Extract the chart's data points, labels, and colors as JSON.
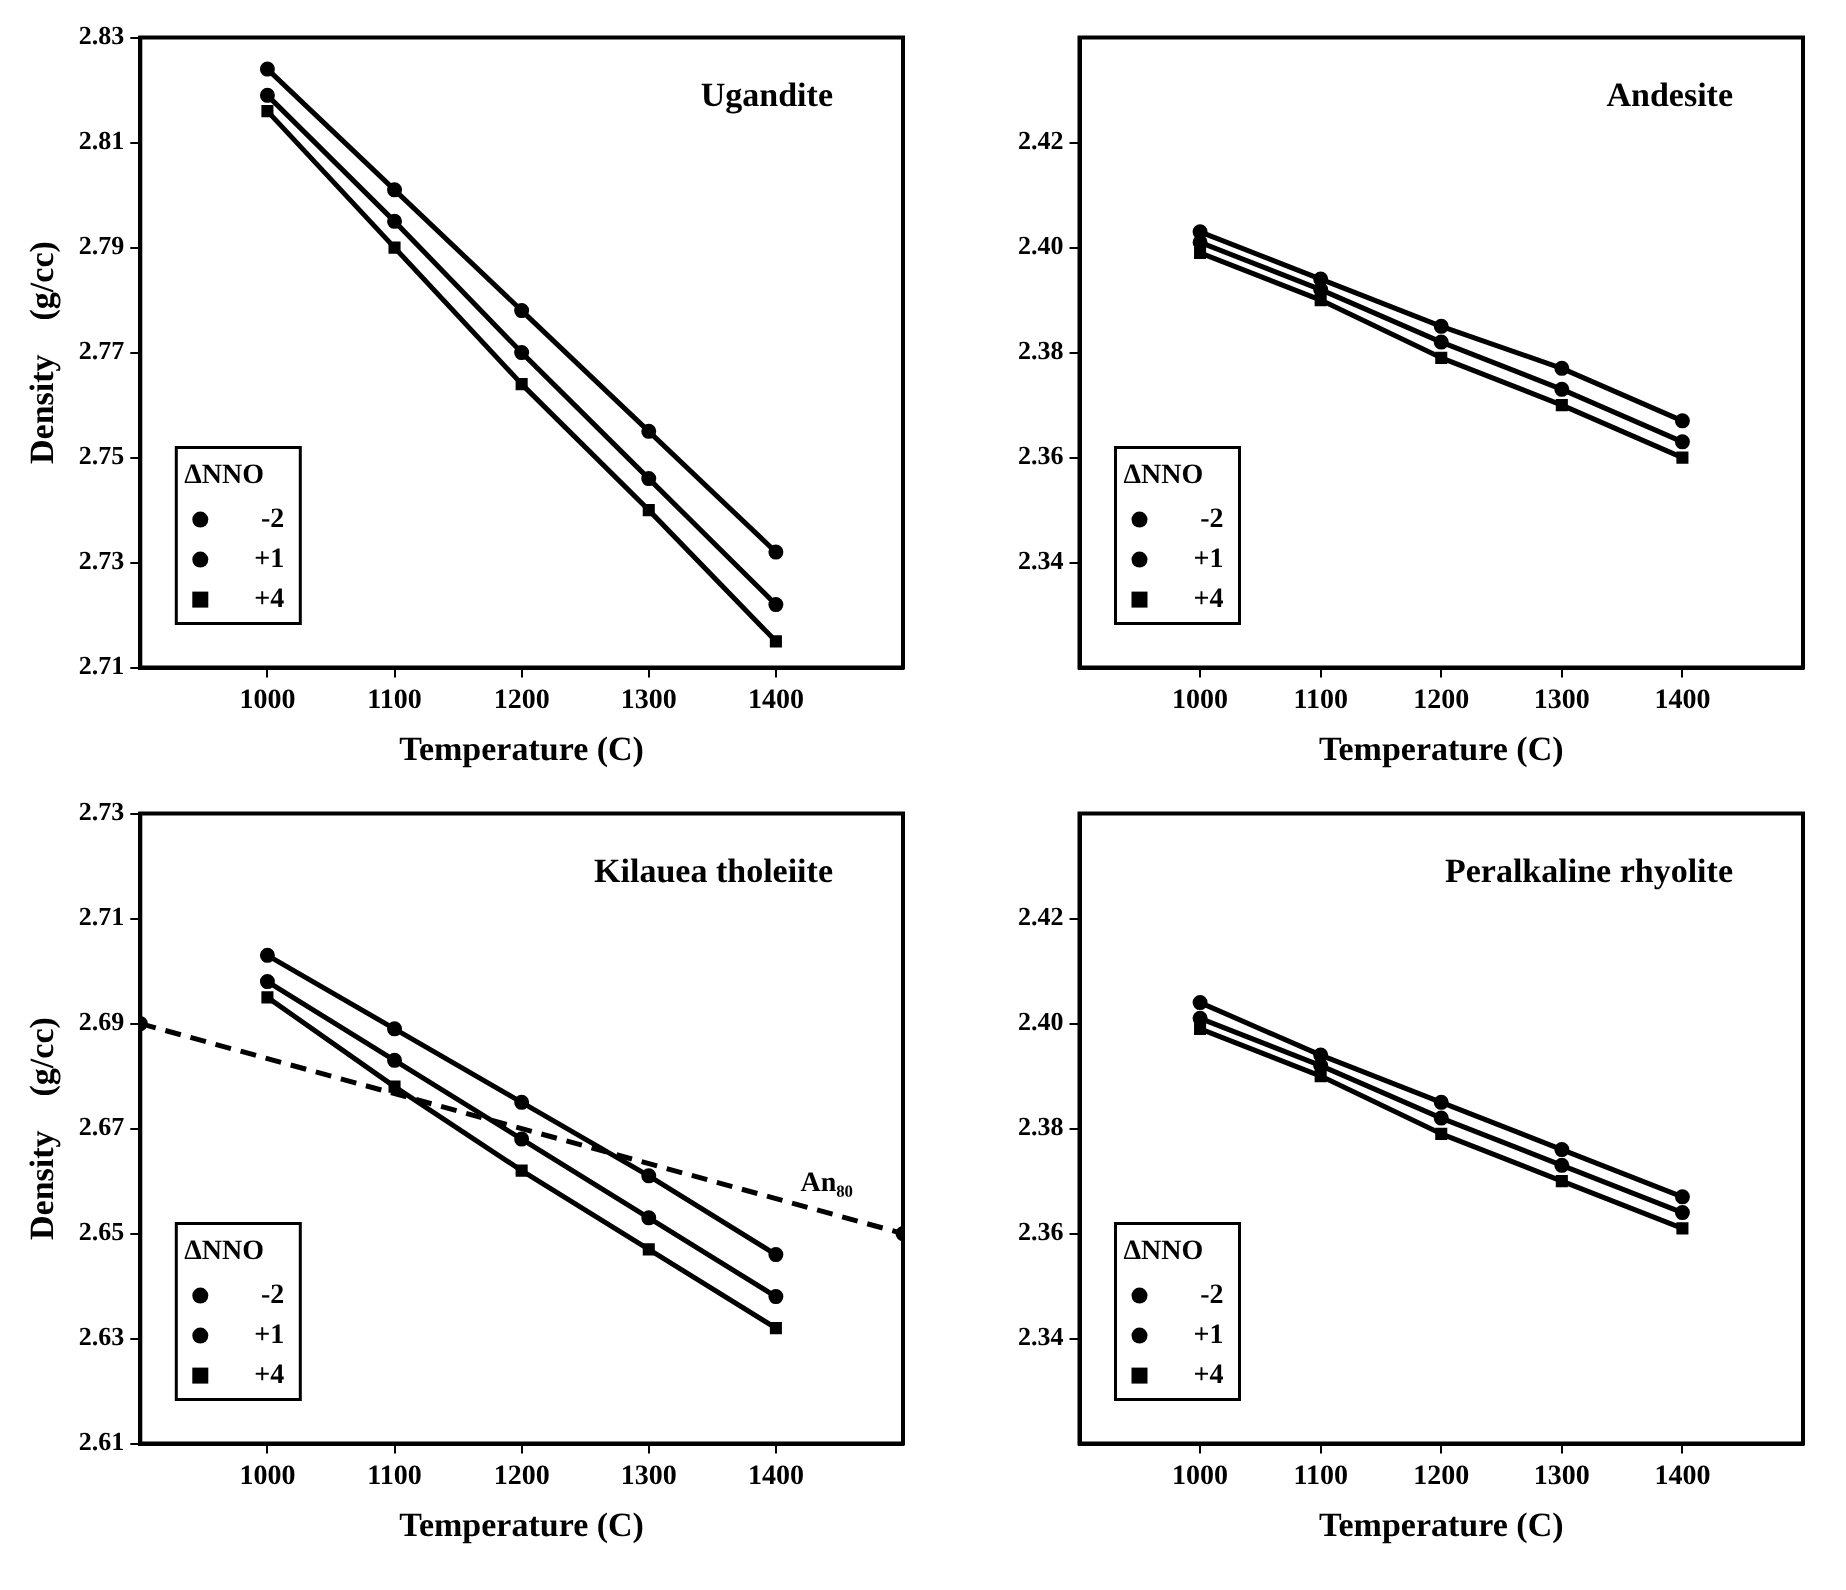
{
  "chart_data": [
    {
      "type": "line",
      "title": "Ugandite",
      "xlabel": "Temperature (C)",
      "ylabel": "Density    (g/cc)",
      "legend_title": "ΔNNO",
      "legend": "bottom left",
      "grid": false,
      "line_style": "solid",
      "x": [
        1000,
        1100,
        1200,
        1300,
        1400
      ],
      "xlim": [
        900,
        1500
      ],
      "xticks": [
        1000,
        1100,
        1200,
        1300,
        1400
      ],
      "ylim": [
        2.71,
        2.83
      ],
      "yticks": [
        2.71,
        2.73,
        2.75,
        2.77,
        2.79,
        2.81,
        2.83
      ],
      "series": [
        {
          "name": "-2",
          "color": "#000000",
          "marker": "circle",
          "values": [
            2.824,
            2.801,
            2.778,
            2.755,
            2.732
          ]
        },
        {
          "name": "+1",
          "color": "#000000",
          "marker": "circle",
          "values": [
            2.819,
            2.795,
            2.77,
            2.746,
            2.722
          ]
        },
        {
          "name": "+4",
          "color": "#000000",
          "marker": "square",
          "values": [
            2.816,
            2.79,
            2.764,
            2.74,
            2.715
          ]
        }
      ]
    },
    {
      "type": "line",
      "title": "Andesite",
      "xlabel": "Temperature (C)",
      "legend_title": "ΔNNO",
      "legend": "bottom left",
      "grid": false,
      "line_style": "solid",
      "x": [
        1000,
        1100,
        1200,
        1300,
        1400
      ],
      "xlim": [
        900,
        1500
      ],
      "xticks": [
        1000,
        1100,
        1200,
        1300,
        1400
      ],
      "ylim": [
        2.32,
        2.44
      ],
      "yticks": [
        2.34,
        2.36,
        2.38,
        {
          "value": 2.4,
          "label": "2.40"
        },
        2.42
      ],
      "series": [
        {
          "name": "-2",
          "color": "#000000",
          "marker": "circle",
          "values": [
            2.403,
            2.394,
            2.385,
            2.377,
            2.367
          ]
        },
        {
          "name": "+1",
          "color": "#000000",
          "marker": "circle",
          "values": [
            2.401,
            2.392,
            2.382,
            2.373,
            2.363
          ]
        },
        {
          "name": "+4",
          "color": "#000000",
          "marker": "square",
          "values": [
            2.399,
            2.39,
            2.379,
            2.37,
            2.36
          ]
        }
      ]
    },
    {
      "type": "line",
      "title": "Kilauea tholeiite",
      "xlabel": "Temperature (C)",
      "ylabel": "Density    (g/cc)",
      "legend_title": "ΔNNO",
      "legend": "bottom left",
      "grid": false,
      "line_style": "solid",
      "x": [
        1000,
        1100,
        1200,
        1300,
        1400
      ],
      "xlim": [
        900,
        1500
      ],
      "xticks": [
        1000,
        1100,
        1200,
        1300,
        1400
      ],
      "ylim": [
        2.61,
        2.73
      ],
      "yticks": [
        2.61,
        2.63,
        2.65,
        2.67,
        2.69,
        2.71,
        2.73
      ],
      "series": [
        {
          "name": "-2",
          "color": "#000000",
          "marker": "circle",
          "values": [
            2.703,
            2.689,
            2.675,
            2.661,
            2.646
          ]
        },
        {
          "name": "+1",
          "color": "#000000",
          "marker": "circle",
          "values": [
            2.698,
            2.683,
            2.668,
            2.653,
            2.638
          ]
        },
        {
          "name": "+4",
          "color": "#000000",
          "marker": "square",
          "values": [
            2.695,
            2.678,
            2.662,
            2.647,
            2.632
          ]
        },
        {
          "name": "An₈₀",
          "color": "#000000",
          "marker": "circle",
          "line_style": "dashed",
          "x": [
            900,
            1500
          ],
          "values": [
            2.69,
            2.65
          ]
        }
      ]
    },
    {
      "type": "line",
      "title": "Peralkaline rhyolite",
      "xlabel": "Temperature (C)",
      "legend_title": "ΔNNO",
      "legend": "bottom left",
      "grid": false,
      "line_style": "solid",
      "x": [
        1000,
        1100,
        1200,
        1300,
        1400
      ],
      "xlim": [
        900,
        1500
      ],
      "xticks": [
        1000,
        1100,
        1200,
        1300,
        1400
      ],
      "ylim": [
        2.32,
        2.44
      ],
      "yticks": [
        2.34,
        2.36,
        2.38,
        {
          "value": 2.4,
          "label": "2.40"
        },
        2.42
      ],
      "series": [
        {
          "name": "-2",
          "color": "#000000",
          "marker": "circle",
          "values": [
            2.404,
            2.394,
            2.385,
            2.376,
            2.367
          ]
        },
        {
          "name": "+1",
          "color": "#000000",
          "marker": "circle",
          "values": [
            2.401,
            2.392,
            2.382,
            2.373,
            2.364
          ]
        },
        {
          "name": "+4",
          "color": "#000000",
          "marker": "square",
          "values": [
            2.399,
            2.39,
            2.379,
            2.37,
            2.361
          ]
        }
      ]
    }
  ]
}
